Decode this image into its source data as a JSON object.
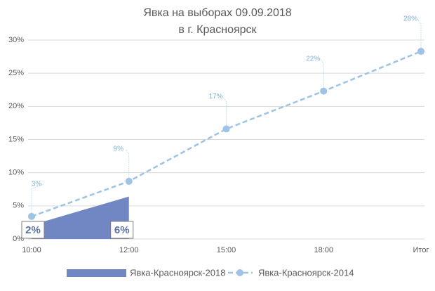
{
  "chart_data": {
    "type": "combo",
    "title": [
      "Явка на выборах 09.09.2018",
      "в г. Красноярск"
    ],
    "categories": [
      "10:00",
      "12:00",
      "15:00",
      "18:00",
      "Итог"
    ],
    "series": [
      {
        "name": "Явка-Красноярск-2018",
        "type": "area",
        "color": "#7187c4",
        "values": [
          2.1,
          6.4,
          null,
          null,
          null
        ],
        "value_labels": [
          "2%",
          "6%",
          null,
          null,
          null
        ]
      },
      {
        "name": "Явка-Красноярск-2014",
        "type": "line",
        "color": "#9dc3e6",
        "values": [
          3.4,
          8.7,
          16.6,
          22.3,
          28.3
        ],
        "value_labels": [
          "3%",
          "9%",
          "17%",
          "22%",
          "28%"
        ]
      }
    ],
    "ylim": [
      0,
      30
    ],
    "yticks": [
      {
        "value": 0,
        "label": "0%"
      },
      {
        "value": 5,
        "label": "5%"
      },
      {
        "value": 10,
        "label": "10%"
      },
      {
        "value": 15,
        "label": "15%"
      },
      {
        "value": 20,
        "label": "20%"
      },
      {
        "value": 25,
        "label": "25%"
      },
      {
        "value": 30,
        "label": "30%"
      }
    ],
    "grid": true,
    "legend": "bottom"
  }
}
